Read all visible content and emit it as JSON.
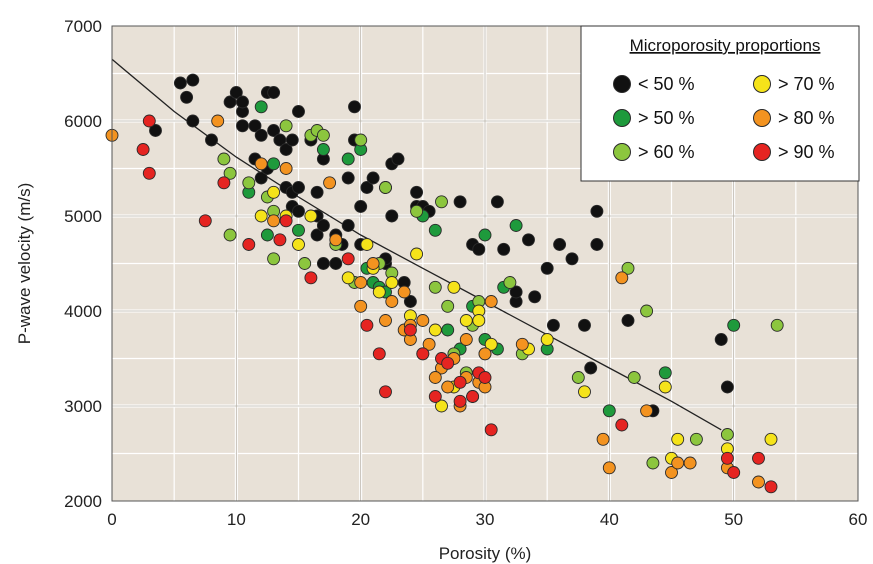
{
  "chart_data": {
    "type": "scatter",
    "xlabel": "Porosity (%)",
    "ylabel": "P-wave velocity (m/s)",
    "xlim": [
      0,
      60
    ],
    "ylim": [
      2000,
      7000
    ],
    "x_ticks": [
      "0",
      "10",
      "20",
      "30",
      "40",
      "50",
      "60"
    ],
    "y_ticks": [
      "2000",
      "3000",
      "4000",
      "5000",
      "6000",
      "7000"
    ],
    "grid": true,
    "legend": {
      "title": "Microporosity proportions",
      "placement": "top-right",
      "entries": [
        {
          "label": "< 50 %",
          "color": "#111111"
        },
        {
          "label": "> 50 %",
          "color": "#1e9a3c"
        },
        {
          "label": "> 60 %",
          "color": "#8cc63e"
        },
        {
          "label": "> 70 %",
          "color": "#f5e31a"
        },
        {
          "label": "> 80 %",
          "color": "#f39320"
        },
        {
          "label": "> 90 %",
          "color": "#e52421"
        }
      ]
    },
    "trendline": {
      "x": [
        0,
        5,
        10,
        15,
        20,
        25,
        30,
        35,
        40,
        45,
        49
      ],
      "y": [
        6650,
        6100,
        5620,
        5200,
        4800,
        4450,
        4100,
        3750,
        3400,
        3050,
        2750
      ]
    },
    "series": [
      {
        "name": "< 50 %",
        "color": "#111111",
        "points": [
          [
            5.5,
            6400
          ],
          [
            6,
            6250
          ],
          [
            6.5,
            6430
          ],
          [
            6.5,
            6000
          ],
          [
            3.5,
            5900
          ],
          [
            8,
            5800
          ],
          [
            9.5,
            6200
          ],
          [
            10,
            6300
          ],
          [
            10.5,
            6100
          ],
          [
            10.5,
            5950
          ],
          [
            10.5,
            6200
          ],
          [
            11.5,
            5600
          ],
          [
            11.5,
            5950
          ],
          [
            12,
            5850
          ],
          [
            12,
            5400
          ],
          [
            12.5,
            6300
          ],
          [
            12.5,
            5500
          ],
          [
            13,
            6300
          ],
          [
            13,
            5900
          ],
          [
            13.5,
            5800
          ],
          [
            14,
            5700
          ],
          [
            14,
            5300
          ],
          [
            14.5,
            5800
          ],
          [
            14.5,
            5100
          ],
          [
            14.5,
            5250
          ],
          [
            15,
            6100
          ],
          [
            15,
            5300
          ],
          [
            15,
            5050
          ],
          [
            16,
            5800
          ],
          [
            16.5,
            5250
          ],
          [
            16.5,
            4800
          ],
          [
            16.5,
            5000
          ],
          [
            17,
            4900
          ],
          [
            17,
            5600
          ],
          [
            17,
            4500
          ],
          [
            18,
            4800
          ],
          [
            18,
            4500
          ],
          [
            18.5,
            4700
          ],
          [
            19,
            4900
          ],
          [
            19,
            5400
          ],
          [
            19.5,
            6150
          ],
          [
            19.5,
            5800
          ],
          [
            20,
            5100
          ],
          [
            20,
            4700
          ],
          [
            20.5,
            5300
          ],
          [
            21,
            5400
          ],
          [
            22,
            5300
          ],
          [
            22,
            4500
          ],
          [
            22,
            4550
          ],
          [
            22.5,
            5000
          ],
          [
            22.5,
            5550
          ],
          [
            23,
            5600
          ],
          [
            23.5,
            4300
          ],
          [
            24,
            4100
          ],
          [
            24.5,
            5250
          ],
          [
            24.5,
            5100
          ],
          [
            25,
            5100
          ],
          [
            25.5,
            5050
          ],
          [
            28,
            5150
          ],
          [
            29,
            4700
          ],
          [
            29.5,
            4650
          ],
          [
            31,
            5150
          ],
          [
            31.5,
            4650
          ],
          [
            32.5,
            4100
          ],
          [
            32.5,
            4200
          ],
          [
            33.5,
            4750
          ],
          [
            34,
            4150
          ],
          [
            35,
            4450
          ],
          [
            35.5,
            3850
          ],
          [
            36,
            4700
          ],
          [
            37,
            4550
          ],
          [
            38,
            3850
          ],
          [
            39,
            5050
          ],
          [
            39,
            4700
          ],
          [
            38.5,
            3400
          ],
          [
            41.5,
            3900
          ],
          [
            43.5,
            2950
          ],
          [
            49,
            3700
          ],
          [
            49.5,
            3200
          ]
        ]
      },
      {
        "name": "> 50 %",
        "color": "#1e9a3c",
        "points": [
          [
            12,
            6150
          ],
          [
            13,
            5550
          ],
          [
            11,
            5250
          ],
          [
            12.5,
            4800
          ],
          [
            15,
            4850
          ],
          [
            17,
            5700
          ],
          [
            19,
            5600
          ],
          [
            20,
            5700
          ],
          [
            20.5,
            4450
          ],
          [
            21,
            4300
          ],
          [
            21.5,
            4250
          ],
          [
            22,
            4200
          ],
          [
            25,
            5000
          ],
          [
            26,
            4850
          ],
          [
            25,
            3550
          ],
          [
            27,
            3800
          ],
          [
            28,
            3600
          ],
          [
            29,
            4050
          ],
          [
            30,
            4800
          ],
          [
            30,
            3700
          ],
          [
            31,
            3600
          ],
          [
            31.5,
            4250
          ],
          [
            32.5,
            4900
          ],
          [
            35,
            3600
          ],
          [
            40,
            2950
          ],
          [
            44.5,
            3350
          ],
          [
            50,
            3850
          ]
        ]
      },
      {
        "name": "> 60 %",
        "color": "#8cc63e",
        "points": [
          [
            9,
            5600
          ],
          [
            9.5,
            5450
          ],
          [
            9.5,
            4800
          ],
          [
            11,
            5350
          ],
          [
            12.5,
            5200
          ],
          [
            13,
            5050
          ],
          [
            13,
            4550
          ],
          [
            14,
            5950
          ],
          [
            15.5,
            4500
          ],
          [
            16,
            5850
          ],
          [
            16.5,
            5900
          ],
          [
            17,
            5850
          ],
          [
            18,
            4700
          ],
          [
            19.5,
            4300
          ],
          [
            20,
            5800
          ],
          [
            21.5,
            4500
          ],
          [
            22,
            5300
          ],
          [
            22.5,
            4400
          ],
          [
            24.5,
            5050
          ],
          [
            26,
            4250
          ],
          [
            26.5,
            5150
          ],
          [
            27,
            4050
          ],
          [
            27.5,
            3550
          ],
          [
            28.5,
            3350
          ],
          [
            29,
            3850
          ],
          [
            29.5,
            4100
          ],
          [
            30,
            3550
          ],
          [
            32,
            4300
          ],
          [
            33,
            3550
          ],
          [
            37.5,
            3300
          ],
          [
            41.5,
            4450
          ],
          [
            42,
            3300
          ],
          [
            43,
            4000
          ],
          [
            43.5,
            2400
          ],
          [
            47,
            2650
          ],
          [
            49.5,
            2700
          ],
          [
            53.5,
            3850
          ]
        ]
      },
      {
        "name": "> 70 %",
        "color": "#f5e31a",
        "points": [
          [
            12,
            5000
          ],
          [
            13,
            5250
          ],
          [
            14,
            5000
          ],
          [
            15,
            4700
          ],
          [
            16,
            5000
          ],
          [
            19,
            4350
          ],
          [
            20.5,
            4700
          ],
          [
            21,
            4450
          ],
          [
            21.5,
            4200
          ],
          [
            22.5,
            4300
          ],
          [
            24,
            3950
          ],
          [
            24.5,
            4600
          ],
          [
            26,
            3800
          ],
          [
            26.5,
            3000
          ],
          [
            27.5,
            3200
          ],
          [
            27.5,
            4250
          ],
          [
            28.5,
            3900
          ],
          [
            29.5,
            4000
          ],
          [
            29.5,
            3900
          ],
          [
            30.5,
            3650
          ],
          [
            33.5,
            3600
          ],
          [
            35,
            3700
          ],
          [
            38,
            3150
          ],
          [
            44.5,
            3200
          ],
          [
            45,
            2450
          ],
          [
            45.5,
            2650
          ],
          [
            49.5,
            2550
          ],
          [
            53,
            2650
          ]
        ]
      },
      {
        "name": "> 80 %",
        "color": "#f39320",
        "points": [
          [
            0,
            5850
          ],
          [
            8.5,
            6000
          ],
          [
            12,
            5550
          ],
          [
            13,
            4950
          ],
          [
            14,
            5500
          ],
          [
            17.5,
            5350
          ],
          [
            18,
            4750
          ],
          [
            20,
            4050
          ],
          [
            20,
            4300
          ],
          [
            21,
            4500
          ],
          [
            22,
            3900
          ],
          [
            22.5,
            4100
          ],
          [
            23.5,
            3800
          ],
          [
            23.5,
            4200
          ],
          [
            24,
            3700
          ],
          [
            24,
            3850
          ],
          [
            25,
            3900
          ],
          [
            25.5,
            3650
          ],
          [
            26.5,
            3400
          ],
          [
            26,
            3300
          ],
          [
            27,
            3200
          ],
          [
            27.5,
            3500
          ],
          [
            28,
            3000
          ],
          [
            28.5,
            3300
          ],
          [
            28.5,
            3700
          ],
          [
            29,
            3100
          ],
          [
            29.5,
            3250
          ],
          [
            30,
            3200
          ],
          [
            30,
            3550
          ],
          [
            30.5,
            4100
          ],
          [
            33,
            3650
          ],
          [
            39.5,
            2650
          ],
          [
            40,
            2350
          ],
          [
            41,
            4350
          ],
          [
            43,
            2950
          ],
          [
            45,
            2300
          ],
          [
            45.5,
            2400
          ],
          [
            46.5,
            2400
          ],
          [
            49.5,
            2350
          ],
          [
            52,
            2200
          ]
        ]
      },
      {
        "name": "> 90 %",
        "color": "#e52421",
        "points": [
          [
            2.5,
            5700
          ],
          [
            3,
            6000
          ],
          [
            3,
            5450
          ],
          [
            7.5,
            4950
          ],
          [
            9,
            5350
          ],
          [
            11,
            4700
          ],
          [
            13.5,
            4750
          ],
          [
            14,
            4950
          ],
          [
            16,
            4350
          ],
          [
            19,
            4550
          ],
          [
            20.5,
            3850
          ],
          [
            21.5,
            3550
          ],
          [
            22,
            3150
          ],
          [
            24,
            3800
          ],
          [
            25,
            3550
          ],
          [
            26,
            3100
          ],
          [
            26.5,
            3500
          ],
          [
            27,
            3450
          ],
          [
            28,
            3050
          ],
          [
            28,
            3250
          ],
          [
            29,
            3100
          ],
          [
            29.5,
            3350
          ],
          [
            30,
            3300
          ],
          [
            30.5,
            2750
          ],
          [
            41,
            2800
          ],
          [
            49.5,
            2450
          ],
          [
            50,
            2300
          ],
          [
            52,
            2450
          ],
          [
            53,
            2150
          ]
        ]
      }
    ]
  }
}
